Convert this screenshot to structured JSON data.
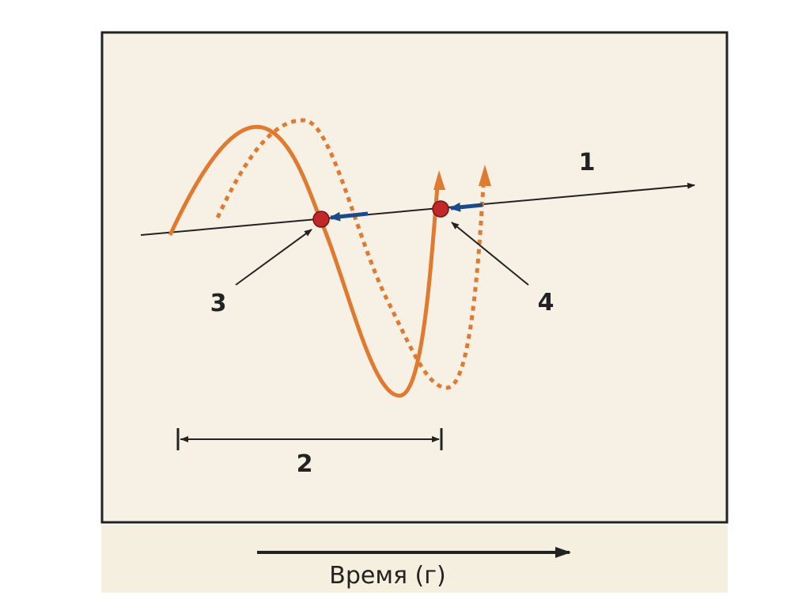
{
  "labels": {
    "line": "1",
    "span": "2",
    "point_a": "3",
    "point_b": "4"
  },
  "axis_label": "Время (г)"
}
